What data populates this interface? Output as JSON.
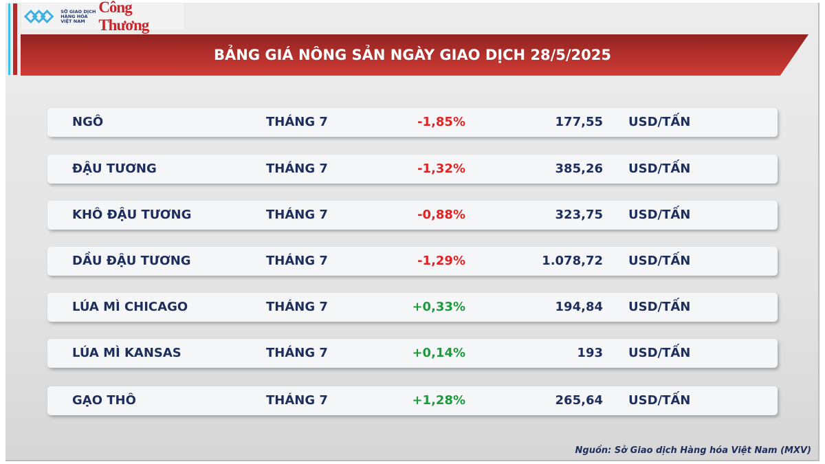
{
  "header": {
    "title": "BẢNG GIÁ NÔNG SẢN NGÀY GIAO DỊCH 28/5/2025",
    "logo_mxv": "SỞ GIAO DỊCH HÀNG HÓA VIỆT NAM",
    "logo_ct": "Công Thương"
  },
  "colors": {
    "banner": "#b3302c",
    "text": "#1d2d5c",
    "negative": "#e02424",
    "positive": "#1d9a3c"
  },
  "rows": [
    {
      "name": "NGÔ",
      "month": "THÁNG 7",
      "change": "-1,85%",
      "price": "177,55",
      "unit": "USD/TẤN",
      "dir": "neg"
    },
    {
      "name": "ĐẬU TƯƠNG",
      "month": "THÁNG 7",
      "change": "-1,32%",
      "price": "385,26",
      "unit": "USD/TẤN",
      "dir": "neg"
    },
    {
      "name": "KHÔ ĐẬU TƯƠNG",
      "month": "THÁNG 7",
      "change": "-0,88%",
      "price": "323,75",
      "unit": "USD/TẤN",
      "dir": "neg"
    },
    {
      "name": "DẦU ĐẬU TƯƠNG",
      "month": "THÁNG 7",
      "change": "-1,29%",
      "price": "1.078,72",
      "unit": "USD/TẤN",
      "dir": "neg"
    },
    {
      "name": "LÚA MÌ CHICAGO",
      "month": "THÁNG 7",
      "change": "+0,33%",
      "price": "194,84",
      "unit": "USD/TẤN",
      "dir": "pos"
    },
    {
      "name": "LÚA MÌ KANSAS",
      "month": "THÁNG 7",
      "change": "+0,14%",
      "price": "193",
      "unit": "USD/TẤN",
      "dir": "pos"
    },
    {
      "name": "GẠO THÔ",
      "month": "THÁNG 7",
      "change": "+1,28%",
      "price": "265,64",
      "unit": "USD/TẤN",
      "dir": "pos"
    }
  ],
  "footer": {
    "source": "Nguồn: Sở Giao dịch Hàng hóa Việt Nam (MXV)"
  }
}
